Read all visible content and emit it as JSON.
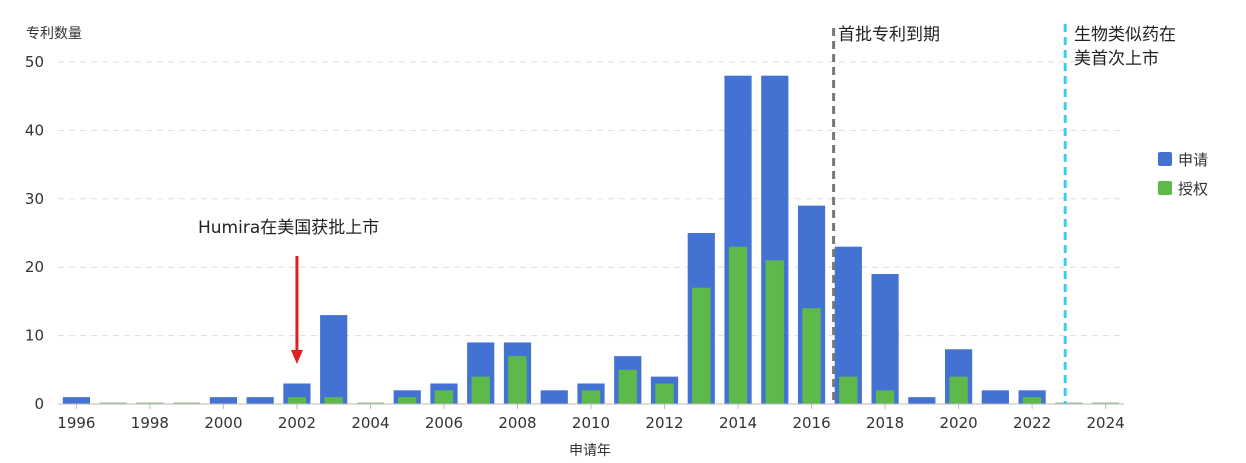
{
  "chart_data": {
    "type": "bar",
    "title": "",
    "xlabel": "申请年",
    "ylabel": "专利数量",
    "ylim": [
      0,
      50
    ],
    "yticks": [
      0,
      10,
      20,
      30,
      40,
      50
    ],
    "grid": "horizontal-dashed",
    "legend_position": "right",
    "categories": [
      1996,
      1997,
      1998,
      1999,
      2000,
      2001,
      2002,
      2003,
      2004,
      2005,
      2006,
      2007,
      2008,
      2009,
      2010,
      2011,
      2012,
      2013,
      2014,
      2015,
      2016,
      2017,
      2018,
      2019,
      2020,
      2021,
      2022,
      2023,
      2024
    ],
    "xtick_labels": [
      "1996",
      "1998",
      "2000",
      "2002",
      "2004",
      "2006",
      "2008",
      "2010",
      "2012",
      "2014",
      "2016",
      "2018",
      "2020",
      "2022",
      "2024"
    ],
    "series": [
      {
        "name": "申请",
        "color": "#4472d3",
        "values": [
          1,
          0,
          0,
          0,
          1,
          1,
          3,
          13,
          0,
          2,
          3,
          9,
          9,
          2,
          3,
          7,
          4,
          25,
          48,
          48,
          29,
          23,
          19,
          1,
          8,
          2,
          2,
          0,
          0
        ]
      },
      {
        "name": "授权",
        "color": "#5db94a",
        "values": [
          0,
          0,
          0,
          0,
          0,
          0,
          1,
          1,
          0,
          1,
          2,
          4,
          7,
          0,
          2,
          5,
          3,
          17,
          23,
          21,
          14,
          4,
          2,
          0,
          4,
          0,
          1,
          0,
          0
        ]
      }
    ],
    "annotations": [
      {
        "text": "Humira在美国获批上市",
        "x": 2002,
        "type": "arrow",
        "color": "#e02020"
      },
      {
        "text": "首批专利到期",
        "x": 2016.6,
        "type": "vline",
        "color": "#777777"
      },
      {
        "lines": [
          "生物类似药在",
          "美首次上市"
        ],
        "x": 2022.9,
        "type": "vline",
        "color": "#3ecbf0"
      }
    ]
  }
}
